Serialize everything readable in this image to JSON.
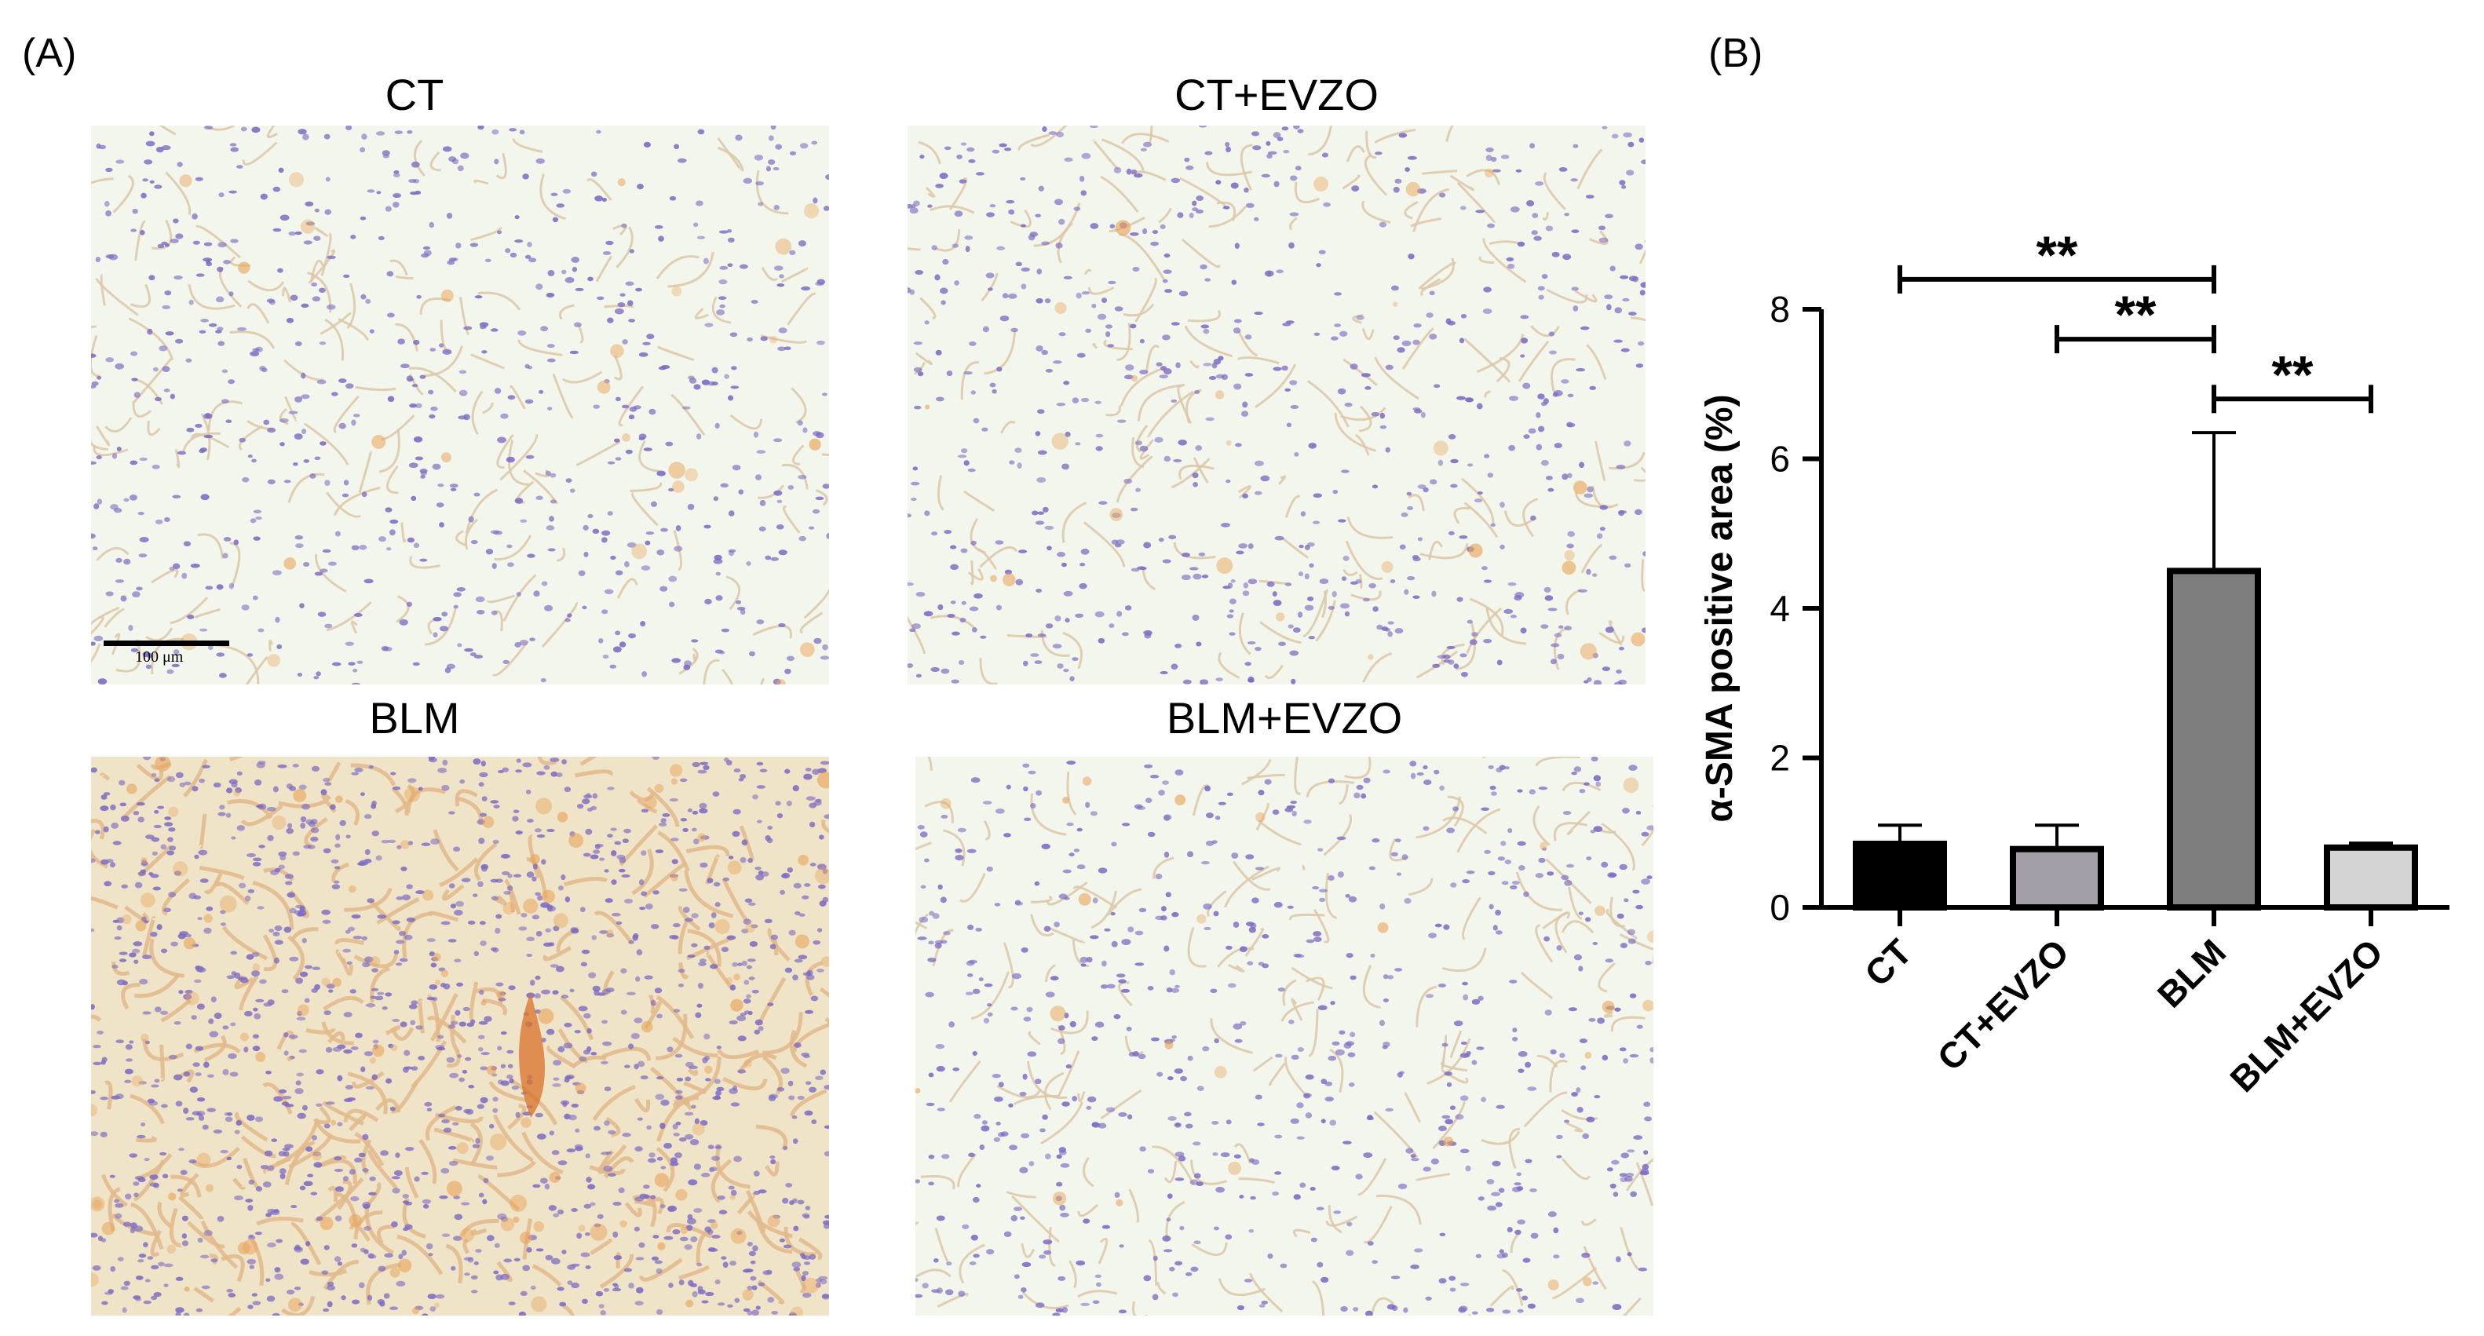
{
  "panel_a": {
    "label": "(A)",
    "images": [
      {
        "title": "CT",
        "tissue": "normal"
      },
      {
        "title": "CT+EVZO",
        "tissue": "normal"
      },
      {
        "title": "BLM",
        "tissue": "fibrotic"
      },
      {
        "title": "BLM+EVZO",
        "tissue": "normal"
      }
    ],
    "scale_bar_label": "100 μm"
  },
  "panel_b": {
    "label": "(B)"
  },
  "colors": {
    "tissue_bg": "#f3f6ec",
    "nuclei": "#7d6bc2",
    "stain": "#e9a45a",
    "fibrotic_bg": "#efe3c8"
  },
  "chart_data": {
    "type": "bar",
    "categories": [
      "CT",
      "CT+EVZO",
      "BLM",
      "BLM+EVZO"
    ],
    "values": [
      0.85,
      0.78,
      4.5,
      0.8
    ],
    "error_upper": [
      1.1,
      1.1,
      6.35,
      0.86
    ],
    "bar_colors": [
      "#000000",
      "#a29fa8",
      "#7d7d7d",
      "#d4d4d4"
    ],
    "ylabel": "α-SMA positive area (%)",
    "ylim": [
      0,
      8
    ],
    "yticks": [
      0,
      2,
      4,
      6,
      8
    ],
    "significance": [
      {
        "from": "CT",
        "to": "BLM",
        "label": "**",
        "level": 8.4
      },
      {
        "from": "CT+EVZO",
        "to": "BLM",
        "label": "**",
        "level": 7.6
      },
      {
        "from": "BLM",
        "to": "BLM+EVZO",
        "label": "**",
        "level": 6.8
      }
    ]
  }
}
